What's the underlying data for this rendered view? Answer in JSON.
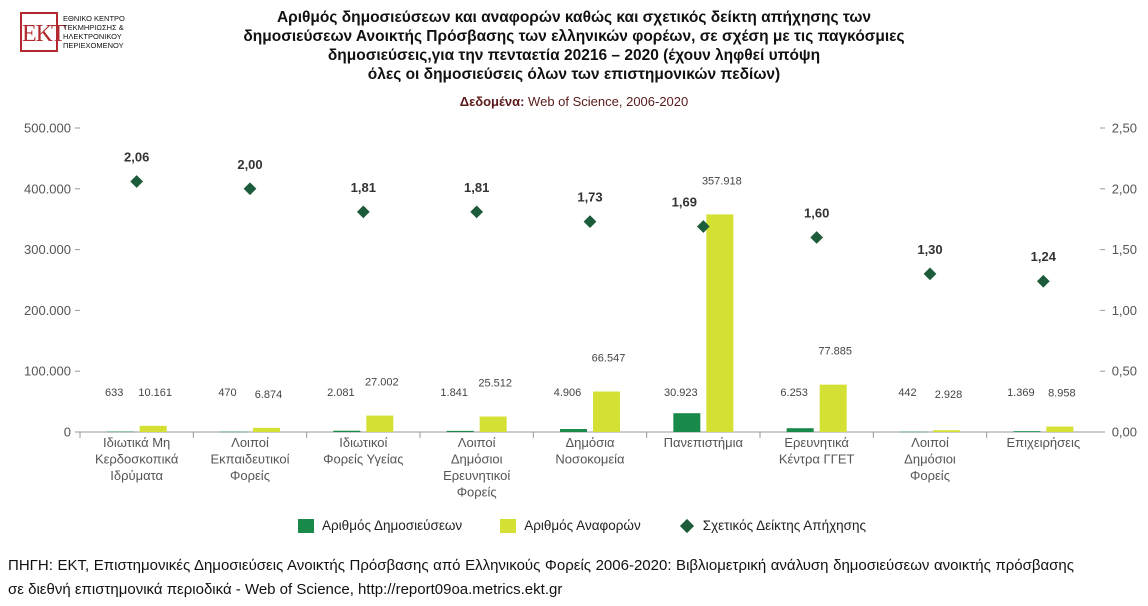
{
  "logo": {
    "letters": "ΕΚΤ",
    "text": "ΕΘΝΙΚΟ ΚΕΝΤΡΟ\nΤΕΚΜΗΡΙΩΣΗΣ &\nΗΛΕΚΤΡΟΝΙΚΟΥ\nΠΕΡΙΕΧΟΜΕΝΟΥ"
  },
  "header": {
    "title_lines": [
      "Αριθμός δημοσιεύσεων και αναφορών καθώς και σχετικός δείκτη απήχησης των",
      "δημοσιεύσεων Ανοικτής Πρόσβασης των ελληνικών φορέων, σε σχέση με τις παγκόσμιες",
      "δημοσιεύσεις,για την πενταετία 20216 – 2020 (έχουν ληφθεί υπόψη",
      "όλες οι δημοσιεύσεις όλων των επιστημονικών πεδίων)"
    ],
    "subtitle_label": "Δεδομένα:",
    "subtitle_value": " Web of Science, 2006-2020"
  },
  "chart_data": {
    "type": "bar",
    "categories": [
      [
        "Ιδιωτικά Μη",
        "Κερδοσκοπικά",
        "Ιδρύματα"
      ],
      [
        "Λοιποί",
        "Εκπαιδευτικοί",
        "Φορείς"
      ],
      [
        "Ιδιωτικοί",
        "Φορείς Υγείας"
      ],
      [
        "Λοιποί",
        "Δημόσιοι",
        "Ερευνητικοί",
        "Φορείς"
      ],
      [
        "Δημόσια",
        "Νοσοκομεία"
      ],
      [
        "Πανεπιστήμια"
      ],
      [
        "Ερευνητικά",
        "Κέντρα ΓΓΕΤ"
      ],
      [
        "Λοιποί",
        "Δημόσιοι",
        "Φορείς"
      ],
      [
        "Επιχειρήσεις"
      ]
    ],
    "series": [
      {
        "name": "Αριθμός Δημοσιεύσεων",
        "type": "bar",
        "axis": "left",
        "color": "#1a8a4a",
        "values": [
          633,
          470,
          2081,
          1841,
          4906,
          30923,
          6253,
          442,
          1369
        ],
        "labels": [
          "633",
          "470",
          "2.081",
          "1.841",
          "4.906",
          "30.923",
          "6.253",
          "442",
          "1.369"
        ]
      },
      {
        "name": "Αριθμός Αναφορών",
        "type": "bar",
        "axis": "left",
        "color": "#d4e033",
        "values": [
          10161,
          6874,
          27002,
          25512,
          66547,
          357918,
          77885,
          2928,
          8958
        ],
        "labels": [
          "10.161",
          "6.874",
          "27.002",
          "25.512",
          "66.547",
          "357.918",
          "77.885",
          "2.928",
          "8.958"
        ]
      },
      {
        "name": "Σχετικός Δείκτης Απήχησης",
        "type": "scatter",
        "axis": "right",
        "color": "#1d5c3a",
        "values": [
          2.06,
          2.0,
          1.81,
          1.81,
          1.73,
          1.69,
          1.6,
          1.3,
          1.24
        ],
        "labels": [
          "2,06",
          "2,00",
          "1,81",
          "1,81",
          "1,73",
          "1,69",
          "1,60",
          "1,30",
          "1,24"
        ]
      }
    ],
    "left_axis": {
      "ylim": [
        0,
        500000
      ],
      "ticks": [
        0,
        100000,
        200000,
        300000,
        400000,
        500000
      ],
      "tick_labels": [
        "0",
        "100.000",
        "200.000",
        "300.000",
        "400.000",
        "500.000"
      ]
    },
    "right_axis": {
      "ylim": [
        0,
        2.5
      ],
      "ticks": [
        0,
        0.5,
        1.0,
        1.5,
        2.0,
        2.5
      ],
      "tick_labels": [
        "0,00",
        "0,50",
        "1,00",
        "1,50",
        "2,00",
        "2,50"
      ]
    },
    "grid": false,
    "legend_position": "bottom"
  },
  "source": {
    "text": "ΠΗΓΗ: ΕΚΤ, Επιστημονικές Δημοσιεύσεις Ανοικτής Πρόσβασης από Ελληνικούς Φορείς 2006-2020: Βιβλιομετρική ανάλυση δημοσιεύσεων ανοικτής πρόσβασης σε διεθνή επιστημονικά περιοδικά - Web of Science, http://report09oa.metrics.ekt.gr"
  }
}
